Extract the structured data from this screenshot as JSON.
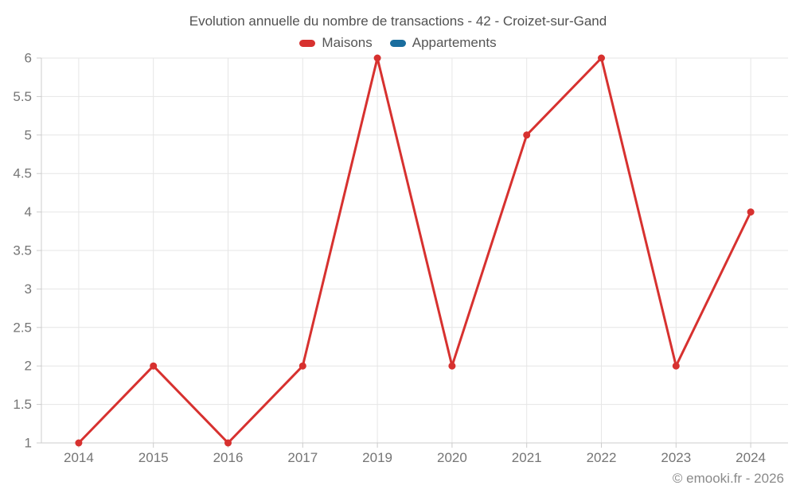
{
  "footer": {
    "copyright": "© emooki.fr - 2026"
  },
  "theme": {
    "background": "#ffffff",
    "grid_color": "#e6e6e6",
    "axis_color": "#cccccc",
    "title_color": "#515151",
    "legend_text_color": "#555555",
    "tick_label_color": "#757575",
    "copyright_color": "#8a8a8a"
  },
  "chart_data": {
    "type": "line",
    "title": "Evolution annuelle du nombre de transactions - 42 - Croizet-sur-Gand",
    "categories": [
      "2014",
      "2015",
      "2016",
      "2017",
      "2019",
      "2020",
      "2021",
      "2022",
      "2023",
      "2024"
    ],
    "series": [
      {
        "name": "Maisons",
        "color": "#d7312f",
        "values": [
          1,
          2,
          1,
          2,
          6,
          2,
          5,
          6,
          2,
          4
        ]
      },
      {
        "name": "Appartements",
        "color": "#1a6d9e",
        "values": []
      }
    ],
    "xlabel": "",
    "ylabel": "",
    "ylim": [
      1,
      6
    ],
    "ytick_step": 0.5,
    "ytick_labels": [
      "1",
      "1.5",
      "2",
      "2.5",
      "3",
      "3.5",
      "4",
      "4.5",
      "5",
      "5.5",
      "6"
    ],
    "grid": true,
    "legend_position": "top",
    "marker_radius": 4.5,
    "line_width": 3
  }
}
